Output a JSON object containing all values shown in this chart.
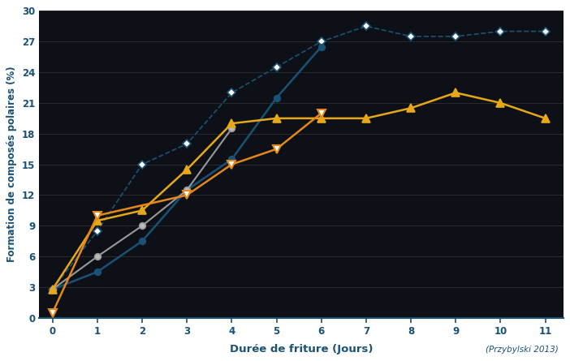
{
  "xlabel": "Durée de friture (Jours)",
  "ylabel": "Formation de composés polaires (%)",
  "annotation": "(Przybylski 2013)",
  "ylim": [
    0,
    30
  ],
  "yticks": [
    0,
    3,
    6,
    9,
    12,
    15,
    18,
    21,
    24,
    27,
    30
  ],
  "xlim": [
    -0.3,
    11.4
  ],
  "xticks": [
    0,
    1,
    2,
    3,
    4,
    5,
    6,
    7,
    8,
    9,
    10,
    11
  ],
  "series": [
    {
      "x": [
        0,
        1,
        2,
        3,
        4,
        5,
        6,
        7,
        8,
        9,
        10,
        11
      ],
      "y": [
        2.8,
        8.5,
        15.0,
        17.0,
        22.0,
        24.5,
        27.0,
        28.5,
        27.5,
        27.5,
        28.0,
        28.0
      ],
      "color": "#1A5276",
      "linestyle": "--",
      "marker": "D",
      "markersize": 5.5,
      "linewidth": 1.2,
      "markerfacecolor": "white",
      "markeredgecolor": "#1A5276",
      "markeredgewidth": 1.2
    },
    {
      "x": [
        0,
        1,
        2,
        3,
        4,
        5,
        6
      ],
      "y": [
        2.8,
        4.5,
        7.5,
        12.5,
        15.5,
        21.5,
        26.5
      ],
      "color": "#1A5276",
      "linestyle": "-",
      "marker": "o",
      "markersize": 5.5,
      "linewidth": 1.8,
      "markerfacecolor": "#1A5276",
      "markeredgecolor": "#1A5276",
      "markeredgewidth": 1.2
    },
    {
      "x": [
        0,
        1,
        2,
        3,
        4
      ],
      "y": [
        2.8,
        6.0,
        9.0,
        12.5,
        18.5
      ],
      "color": "#999999",
      "linestyle": "-",
      "marker": "o",
      "markersize": 5.5,
      "linewidth": 1.5,
      "markerfacecolor": "#BBBBBB",
      "markeredgecolor": "#999999",
      "markeredgewidth": 1.2
    },
    {
      "x": [
        0,
        1,
        2,
        3,
        4,
        5,
        6,
        7,
        8,
        9,
        10,
        11
      ],
      "y": [
        2.8,
        9.5,
        10.5,
        14.5,
        19.0,
        19.5,
        19.5,
        19.5,
        20.5,
        22.0,
        21.0,
        19.5
      ],
      "color": "#E6A817",
      "linestyle": "-",
      "marker": "^",
      "markersize": 6.5,
      "linewidth": 1.8,
      "markerfacecolor": "#E6A817",
      "markeredgecolor": "#E6A817",
      "markeredgewidth": 1.2
    },
    {
      "x": [
        0,
        1,
        3,
        4,
        5,
        6
      ],
      "y": [
        0.5,
        10.0,
        12.0,
        15.0,
        16.5,
        20.0
      ],
      "color": "#E6871A",
      "linestyle": "-",
      "marker": "v",
      "markersize": 6.5,
      "linewidth": 1.8,
      "markerfacecolor": "white",
      "markeredgecolor": "#E6871A",
      "markeredgewidth": 1.5
    }
  ],
  "background_color": "#FFFFFF",
  "plot_bg_color": "#0D1117",
  "grid_color": "#2A2A2A",
  "spine_color": "#1A5276",
  "tick_color": "#1A5276",
  "label_color": "#1A5276",
  "annotation_color": "#1A5276"
}
